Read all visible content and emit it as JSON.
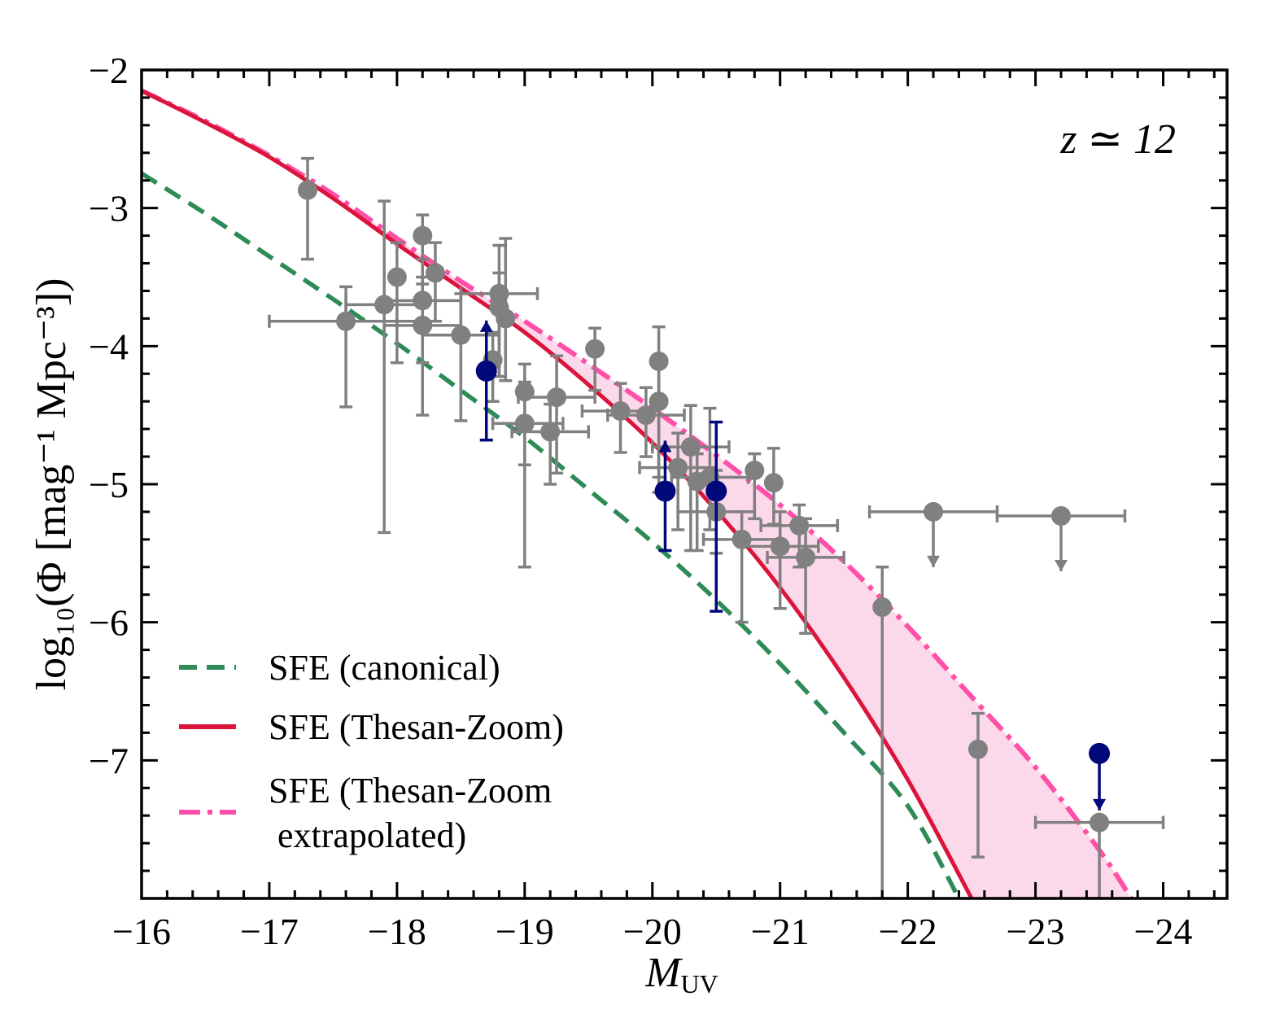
{
  "chart_data": {
    "type": "scatter",
    "title": "",
    "annotation": "z ≃ 12",
    "xlabel": "M",
    "xlabel_sub": "UV",
    "ylabel": "log₁₀(Φ [mag⁻¹ Mpc⁻³])",
    "xlim": [
      -16,
      -24.5
    ],
    "ylim": [
      -8,
      -2
    ],
    "x_ticks": [
      -16,
      -17,
      -18,
      -19,
      -20,
      -21,
      -22,
      -23,
      -24
    ],
    "x_tick_labels": [
      "−16",
      "−17",
      "−18",
      "−19",
      "−20",
      "−21",
      "−22",
      "−23",
      "−24"
    ],
    "y_ticks": [
      -7,
      -6,
      -5,
      -4,
      -3,
      -2
    ],
    "y_tick_labels": [
      "−7",
      "−6",
      "−5",
      "−4",
      "−3",
      "−2"
    ],
    "legend": {
      "placement": "lower-left",
      "entries": [
        {
          "label": "SFE (canonical)",
          "color": "#2e8b57",
          "style": "dashed"
        },
        {
          "label": "SFE (Thesan-Zoom)",
          "color": "#dc143c",
          "style": "solid"
        },
        {
          "label": "SFE (Thesan-Zoom",
          "label2": " extrapolated)",
          "color": "#ff4fa8",
          "style": "dashdot"
        }
      ]
    },
    "colors": {
      "observed": "#808080",
      "highlight": "#00087a",
      "band": "#fcd9ea"
    },
    "series": [
      {
        "name": "SFE (canonical)",
        "color": "#2e8b57",
        "x": [
          -16,
          -16.5,
          -17,
          -17.5,
          -18,
          -18.5,
          -19,
          -19.5,
          -20,
          -20.5,
          -21,
          -21.5,
          -22,
          -22.4
        ],
        "y": [
          -2.75,
          -3.04,
          -3.35,
          -3.66,
          -3.98,
          -4.32,
          -4.66,
          -5.04,
          -5.42,
          -5.84,
          -6.3,
          -6.8,
          -7.33,
          -8.0
        ]
      },
      {
        "name": "SFE (Thesan-Zoom)",
        "color": "#dc143c",
        "x": [
          -16,
          -16.5,
          -17,
          -17.5,
          -18,
          -18.5,
          -19,
          -19.5,
          -20,
          -20.5,
          -21,
          -21.5,
          -22,
          -22.5
        ],
        "y": [
          -2.15,
          -2.38,
          -2.63,
          -2.93,
          -3.26,
          -3.58,
          -3.9,
          -4.28,
          -4.7,
          -5.19,
          -5.75,
          -6.4,
          -7.14,
          -8.0
        ]
      },
      {
        "name": "SFE (Thesan-Zoom extrapolated)",
        "color": "#ff4fa8",
        "x": [
          -16,
          -16.5,
          -17,
          -17.5,
          -18,
          -18.5,
          -19,
          -19.5,
          -20,
          -20.5,
          -21,
          -21.5,
          -22,
          -22.5,
          -23,
          -23.5,
          -23.75
        ],
        "y": [
          -2.15,
          -2.37,
          -2.62,
          -2.9,
          -3.22,
          -3.53,
          -3.82,
          -4.13,
          -4.45,
          -4.79,
          -5.15,
          -5.56,
          -6.03,
          -6.54,
          -7.05,
          -7.65,
          -8.0
        ]
      }
    ],
    "points_observed": [
      {
        "x": -17.3,
        "y": -2.87,
        "yerr_low": 0.5,
        "yerr_high": 0.23
      },
      {
        "x": -17.6,
        "y": -3.82,
        "xerr_low": 0.6,
        "xerr_high": 0.6,
        "yerr_low": 0.62,
        "yerr_high": 0.25
      },
      {
        "x": -17.9,
        "y": -3.7,
        "xerr_low": 0.3,
        "xerr_high": 0.3,
        "yerr_low": 1.65,
        "yerr_high": 0.75
      },
      {
        "x": -18.0,
        "y": -3.5,
        "yerr_low": 0.62,
        "yerr_high": 0.25
      },
      {
        "x": -18.2,
        "y": -3.2,
        "yerr_low": 0.35,
        "yerr_high": 0.15
      },
      {
        "x": -18.2,
        "y": -3.67,
        "xerr_low": 0.3,
        "xerr_high": 0.3,
        "yerr_low": 0.45,
        "yerr_high": 0.3
      },
      {
        "x": -18.2,
        "y": -3.85,
        "xerr_low": 0.3,
        "xerr_high": 0.3,
        "yerr_low": 0.65,
        "yerr_high": 0.35
      },
      {
        "x": -18.3,
        "y": -3.47,
        "yerr_low": 0.35,
        "yerr_high": 0.22
      },
      {
        "x": -18.5,
        "y": -3.92,
        "xerr_low": 0.3,
        "xerr_high": 0.3,
        "yerr_low": 0.62,
        "yerr_high": 0.3
      },
      {
        "x": -18.75,
        "y": -4.1,
        "yerr_low": 0.3,
        "yerr_high": 0.2
      },
      {
        "x": -18.8,
        "y": -3.62,
        "xerr_low": 0.3,
        "xerr_high": 0.3,
        "yerr_low": 0.6,
        "yerr_high": 0.35
      },
      {
        "x": -18.8,
        "y": -3.72,
        "yerr_low": 0.5,
        "yerr_high": 0.25
      },
      {
        "x": -18.85,
        "y": -3.8,
        "yerr_low": 0.45,
        "yerr_high": 0.58
      },
      {
        "x": -19.0,
        "y": -4.33,
        "yerr_low": 1.27,
        "yerr_high": 0.2
      },
      {
        "x": -19.0,
        "y": -4.56,
        "xerr_low": 0.25,
        "xerr_high": 0.3,
        "yerr_low": 0.3,
        "yerr_high": 0.3
      },
      {
        "x": -19.2,
        "y": -4.62,
        "xerr_low": 0.3,
        "xerr_high": 0.3,
        "yerr_low": 0.38,
        "yerr_high": 0.2
      },
      {
        "x": -19.25,
        "y": -4.37,
        "xerr_low": 0.3,
        "xerr_high": 0.3,
        "yerr_low": 0.55,
        "yerr_high": 0.3
      },
      {
        "x": -19.55,
        "y": -4.02,
        "yerr_low": 0.3,
        "yerr_high": 0.15
      },
      {
        "x": -19.75,
        "y": -4.47,
        "xerr_low": 0.3,
        "xerr_high": 0.3,
        "yerr_low": 0.3,
        "yerr_high": 0.2
      },
      {
        "x": -19.95,
        "y": -4.5,
        "xerr_low": 0.3,
        "xerr_high": 0.3,
        "yerr_low": 0.3,
        "yerr_high": 0.2
      },
      {
        "x": -20.05,
        "y": -4.11,
        "yerr_low": 0.95,
        "yerr_high": 0.25
      },
      {
        "x": -20.05,
        "y": -4.4,
        "yerr_low": 0.55,
        "yerr_high": 0.3
      },
      {
        "x": -20.2,
        "y": -4.88,
        "xerr_low": 0.3,
        "xerr_high": 0.3,
        "yerr_low": 0.45,
        "yerr_high": 0.25
      },
      {
        "x": -20.3,
        "y": -4.73,
        "xerr_low": 0.3,
        "xerr_high": 0.3,
        "yerr_low": 0.75,
        "yerr_high": 0.3
      },
      {
        "x": -20.35,
        "y": -4.98,
        "yerr_low": 0.5,
        "yerr_high": 0.2
      },
      {
        "x": -20.45,
        "y": -4.95,
        "xerr_low": 0.3,
        "xerr_high": 0.3,
        "yerr_low": 0.38,
        "yerr_high": 0.5
      },
      {
        "x": -20.5,
        "y": -5.2,
        "xerr_low": 0.3,
        "xerr_high": 0.3,
        "yerr_low": 0.3,
        "yerr_high": 0.3
      },
      {
        "x": -20.7,
        "y": -5.4,
        "xerr_low": 0.3,
        "xerr_high": 0.3,
        "yerr_low": 0.6,
        "yerr_high": 0.2
      },
      {
        "x": -20.8,
        "y": -4.9,
        "yerr_low": 0.35,
        "yerr_high": 0.12
      },
      {
        "x": -20.95,
        "y": -4.99,
        "yerr_low": 0.3,
        "yerr_high": 0.25
      },
      {
        "x": -21.0,
        "y": -5.45,
        "xerr_low": 0.3,
        "xerr_high": 0.3,
        "yerr_low": 0.45,
        "yerr_high": 0.25
      },
      {
        "x": -21.15,
        "y": -5.3,
        "xerr_low": 0.3,
        "xerr_high": 0.3,
        "yerr_low": 0.3,
        "yerr_high": 0.15
      },
      {
        "x": -21.2,
        "y": -5.53,
        "xerr_low": 0.3,
        "xerr_high": 0.3,
        "yerr_low": 0.55,
        "yerr_high": 0.28
      },
      {
        "x": -21.8,
        "y": -5.89,
        "yerr_low": 2.11,
        "yerr_high": 0.29
      },
      {
        "x": -22.55,
        "y": -6.92,
        "yerr_low": 0.78,
        "yerr_high": 0.26
      },
      {
        "x": -23.5,
        "y": -7.45,
        "xerr_low": 0.5,
        "xerr_high": 0.5,
        "yerr_low": 0.55,
        "yerr_high": 0.0
      }
    ],
    "upper_limits_observed": [
      {
        "x": -22.2,
        "y": -5.2,
        "xerr_low": 0.5,
        "xerr_high": 0.5
      },
      {
        "x": -23.2,
        "y": -5.23,
        "xerr_low": 0.5,
        "xerr_high": 0.5
      }
    ],
    "points_highlight": [
      {
        "x": -18.7,
        "y": -4.18,
        "yerr_low": 0.5,
        "yerr_high": 0.0,
        "lower_limit": true
      },
      {
        "x": -20.1,
        "y": -5.05,
        "yerr_low": 0.43,
        "yerr_high": 0.0,
        "lower_limit": true
      },
      {
        "x": -20.5,
        "y": -5.05,
        "yerr_low": 0.87,
        "yerr_high": 0.5
      },
      {
        "x": -23.5,
        "y": -6.95,
        "upper_limit": true
      }
    ]
  }
}
